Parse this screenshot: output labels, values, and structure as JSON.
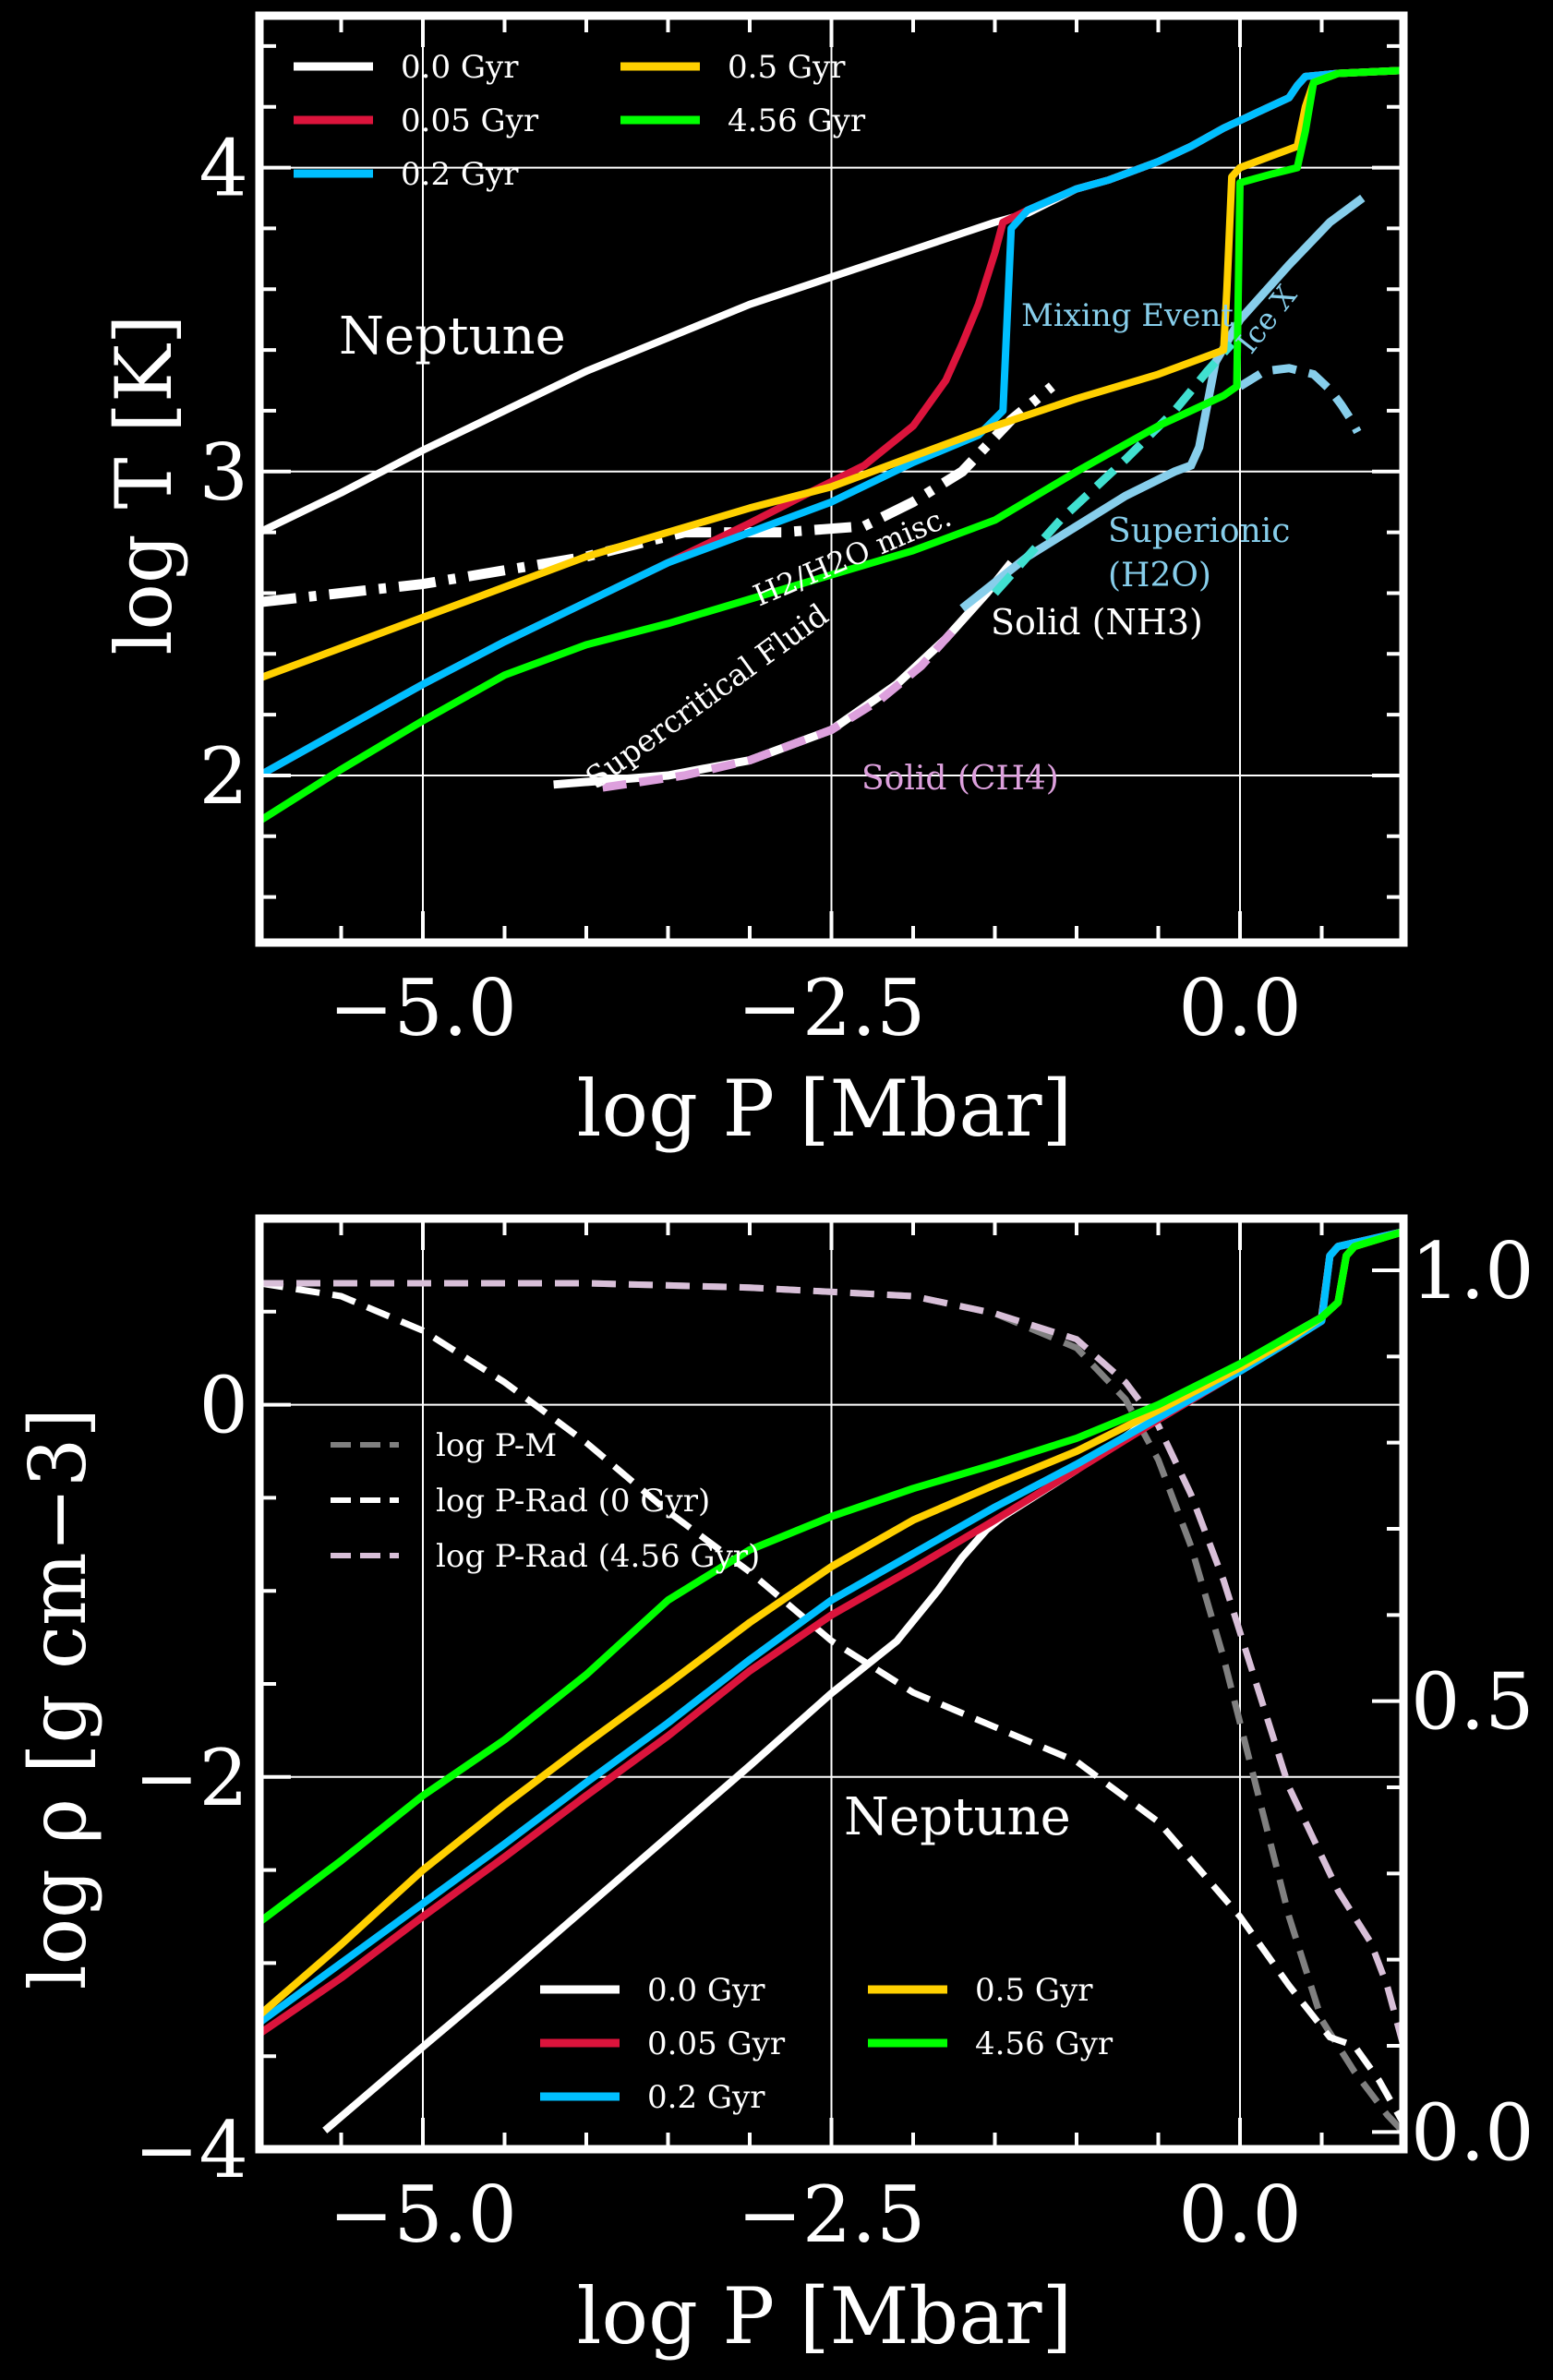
{
  "chart_data": [
    {
      "type": "line",
      "title": "",
      "xlabel": "log P [Mbar]",
      "ylabel": "log T [K]",
      "xlim": [
        -6.0,
        1.0
      ],
      "ylim": [
        1.45,
        4.5
      ],
      "xticks": [
        -5.0,
        -2.5,
        0.0
      ],
      "xtick_labels": [
        "−5.0",
        "−2.5",
        "0.0"
      ],
      "yticks": [
        2,
        3,
        4
      ],
      "ytick_labels": [
        "2",
        "3",
        "4"
      ],
      "grid": true,
      "legend_position": "top-left",
      "series": [
        {
          "name": "0.0 Gyr",
          "color": "#ffffff",
          "x": [
            -6.0,
            -5.5,
            -5.0,
            -4.5,
            -4.0,
            -3.5,
            -3.0,
            -2.5,
            -2.0,
            -1.5,
            -1.3,
            -1.0,
            -0.8,
            -0.5,
            -0.3,
            -0.1,
            0.1,
            0.3,
            0.35,
            0.4,
            0.6,
            1.0
          ],
          "y": [
            2.8,
            2.93,
            3.07,
            3.2,
            3.33,
            3.44,
            3.55,
            3.64,
            3.73,
            3.82,
            3.85,
            3.93,
            3.96,
            4.02,
            4.07,
            4.13,
            4.18,
            4.23,
            4.27,
            4.3,
            4.31,
            4.32
          ]
        },
        {
          "name": "0.05 Gyr",
          "color": "#dc143c",
          "x": [
            -6.0,
            -5.5,
            -5.0,
            -4.5,
            -4.0,
            -3.5,
            -3.0,
            -2.6,
            -2.3,
            -2.0,
            -1.8,
            -1.7,
            -1.6,
            -1.5,
            -1.45,
            -1.3,
            -1.0,
            -0.8,
            -0.5,
            -0.3,
            -0.1,
            0.1,
            0.3,
            0.35,
            0.4,
            0.6,
            1.0
          ],
          "y": [
            2.0,
            2.15,
            2.3,
            2.44,
            2.57,
            2.7,
            2.83,
            2.94,
            3.02,
            3.15,
            3.3,
            3.42,
            3.55,
            3.72,
            3.82,
            3.86,
            3.93,
            3.96,
            4.02,
            4.07,
            4.13,
            4.18,
            4.23,
            4.27,
            4.3,
            4.31,
            4.32
          ]
        },
        {
          "name": "0.2 Gyr",
          "color": "#00bfff",
          "x": [
            -6.0,
            -5.5,
            -5.0,
            -4.5,
            -4.0,
            -3.5,
            -3.0,
            -2.5,
            -2.0,
            -1.6,
            -1.45,
            -1.4,
            -1.3,
            -1.0,
            -0.8,
            -0.5,
            -0.3,
            -0.1,
            0.1,
            0.3,
            0.35,
            0.4,
            0.6,
            1.0
          ],
          "y": [
            2.0,
            2.15,
            2.3,
            2.44,
            2.57,
            2.7,
            2.8,
            2.9,
            3.03,
            3.12,
            3.2,
            3.8,
            3.86,
            3.93,
            3.96,
            4.02,
            4.07,
            4.13,
            4.18,
            4.23,
            4.27,
            4.3,
            4.31,
            4.32
          ]
        },
        {
          "name": "0.5 Gyr",
          "color": "#ffd000",
          "x": [
            -6.0,
            -5.5,
            -5.0,
            -4.5,
            -4.0,
            -3.5,
            -3.0,
            -2.5,
            -2.0,
            -1.5,
            -1.0,
            -0.5,
            -0.2,
            -0.1,
            -0.08,
            -0.05,
            0.0,
            0.2,
            0.35,
            0.4,
            0.45,
            0.6,
            1.0
          ],
          "y": [
            2.32,
            2.42,
            2.52,
            2.62,
            2.72,
            2.8,
            2.88,
            2.95,
            3.05,
            3.15,
            3.24,
            3.32,
            3.38,
            3.4,
            3.6,
            3.97,
            4.0,
            4.04,
            4.07,
            4.2,
            4.28,
            4.31,
            4.32
          ]
        },
        {
          "name": "4.56 Gyr",
          "color": "#00ff00",
          "x": [
            -6.0,
            -5.5,
            -5.0,
            -4.5,
            -4.0,
            -3.5,
            -3.0,
            -2.5,
            -2.0,
            -1.5,
            -1.0,
            -0.5,
            -0.1,
            -0.02,
            0.0,
            0.2,
            0.35,
            0.4,
            0.45,
            0.6,
            1.0
          ],
          "y": [
            1.85,
            2.02,
            2.18,
            2.33,
            2.43,
            2.5,
            2.58,
            2.66,
            2.74,
            2.84,
            3.0,
            3.15,
            3.25,
            3.28,
            3.95,
            3.98,
            4.0,
            4.12,
            4.28,
            4.31,
            4.32
          ]
        }
      ],
      "reference_curves": [
        {
          "label": "H2/H2O misc.",
          "style": "dash-dot",
          "color": "#ffffff",
          "x": [
            -6.0,
            -5.0,
            -4.0,
            -3.4,
            -2.8,
            -2.3,
            -2.0,
            -1.7,
            -1.4,
            -1.15
          ],
          "y": [
            2.57,
            2.63,
            2.72,
            2.8,
            2.8,
            2.82,
            2.9,
            3.0,
            3.17,
            3.28
          ]
        },
        {
          "label": "Supercritical Fluid / Solid (NH3) boundary",
          "style": "solid",
          "color": "#ffffff",
          "x": [
            -4.2,
            -3.5,
            -3.0,
            -2.5,
            -2.1,
            -1.8,
            -1.55,
            -1.4
          ],
          "y": [
            1.97,
            2.0,
            2.05,
            2.15,
            2.3,
            2.45,
            2.6,
            2.7
          ]
        },
        {
          "label": "Solid (CH4)",
          "style": "dashed",
          "color": "#dda0dd",
          "x": [
            -3.9,
            -3.4,
            -3.0,
            -2.5,
            -2.2,
            -1.95,
            -1.75
          ],
          "y": [
            1.96,
            2.0,
            2.05,
            2.15,
            2.25,
            2.36,
            2.48
          ]
        },
        {
          "label": "Superionic (H2O)",
          "style": "solid",
          "color": "#87ceeb",
          "x": [
            -1.7,
            -1.3,
            -1.0,
            -0.7,
            -0.4,
            -0.3,
            -0.25,
            -0.2,
            -0.15,
            0.0,
            0.3,
            0.55,
            0.75
          ],
          "y": [
            2.55,
            2.72,
            2.82,
            2.92,
            3.0,
            3.02,
            3.08,
            3.22,
            3.36,
            3.5,
            3.68,
            3.82,
            3.9
          ]
        },
        {
          "label": "Ice X",
          "style": "dashed",
          "color": "#87ceeb",
          "x": [
            0.0,
            0.15,
            0.3,
            0.45,
            0.55,
            0.62,
            0.68,
            0.72
          ],
          "y": [
            3.28,
            3.33,
            3.34,
            3.32,
            3.27,
            3.22,
            3.17,
            3.13
          ]
        },
        {
          "label": "Solid (NH3) boundary",
          "style": "dashed",
          "color": "#40e0d0",
          "x": [
            -1.5,
            -1.1,
            -0.7,
            -0.4,
            -0.2,
            -0.05
          ],
          "y": [
            2.6,
            2.84,
            3.04,
            3.2,
            3.33,
            3.42
          ]
        }
      ],
      "annotations": [
        "Neptune",
        "Mixing Event",
        "Ice X",
        "H2/H2O misc.",
        "Superionic",
        "(H2O)",
        "Solid (NH3)",
        "Supercritical Fluid",
        "Solid (CH4)"
      ]
    },
    {
      "type": "line",
      "title": "",
      "xlabel": "log P [Mbar]",
      "ylabel": "log ρ [g cm−3]",
      "xlim": [
        -6.0,
        1.0
      ],
      "ylim": [
        -4.0,
        1.0
      ],
      "y2lim": [
        -0.02,
        1.06
      ],
      "xticks": [
        -5.0,
        -2.5,
        0.0
      ],
      "xtick_labels": [
        "−5.0",
        "−2.5",
        "0.0"
      ],
      "yticks": [
        -4,
        -2,
        0
      ],
      "ytick_labels": [
        "−4",
        "−2",
        "0"
      ],
      "y2ticks": [
        0.0,
        0.5,
        1.0
      ],
      "y2tick_labels": [
        "0.0",
        "0.5",
        "1.0"
      ],
      "grid": true,
      "legend_position": "bottom-center",
      "series": [
        {
          "name": "0.0 Gyr",
          "color": "#ffffff",
          "x": [
            -5.6,
            -5.0,
            -4.5,
            -4.0,
            -3.5,
            -3.0,
            -2.5,
            -2.1,
            -1.85,
            -1.7,
            -1.55,
            -1.45,
            -1.0,
            -0.5,
            0.0,
            0.3,
            0.5,
            0.55,
            0.6,
            0.7,
            1.0
          ],
          "y": [
            -3.9,
            -3.45,
            -3.08,
            -2.7,
            -2.32,
            -1.94,
            -1.55,
            -1.27,
            -1.0,
            -0.82,
            -0.67,
            -0.6,
            -0.35,
            -0.05,
            0.2,
            0.37,
            0.47,
            0.8,
            0.85,
            0.87,
            0.93
          ]
        },
        {
          "name": "0.05 Gyr",
          "color": "#dc143c",
          "x": [
            -6.0,
            -5.5,
            -5.0,
            -4.5,
            -4.0,
            -3.5,
            -3.0,
            -2.5,
            -2.0,
            -1.5,
            -1.0,
            -0.5,
            0.0,
            0.3,
            0.5,
            0.55,
            0.6,
            0.7,
            1.0
          ],
          "y": [
            -3.38,
            -3.08,
            -2.75,
            -2.43,
            -2.1,
            -1.78,
            -1.43,
            -1.13,
            -0.88,
            -0.62,
            -0.35,
            -0.08,
            0.18,
            0.34,
            0.45,
            0.8,
            0.85,
            0.87,
            0.93
          ]
        },
        {
          "name": "0.2 Gyr",
          "color": "#00bfff",
          "x": [
            -6.0,
            -5.5,
            -5.0,
            -4.5,
            -4.0,
            -3.5,
            -3.0,
            -2.5,
            -2.0,
            -1.5,
            -1.0,
            -0.5,
            0.0,
            0.3,
            0.5,
            0.55,
            0.6,
            0.7,
            1.0
          ],
          "y": [
            -3.32,
            -3.0,
            -2.68,
            -2.36,
            -2.03,
            -1.71,
            -1.37,
            -1.05,
            -0.8,
            -0.55,
            -0.32,
            -0.07,
            0.18,
            0.34,
            0.45,
            0.8,
            0.85,
            0.87,
            0.93
          ]
        },
        {
          "name": "0.5 Gyr",
          "color": "#ffd000",
          "x": [
            -6.0,
            -5.5,
            -5.0,
            -4.5,
            -4.0,
            -3.5,
            -3.0,
            -2.5,
            -2.0,
            -1.5,
            -1.0,
            -0.5,
            0.0,
            0.3,
            0.5,
            0.6,
            0.65,
            0.7,
            1.0
          ],
          "y": [
            -3.28,
            -2.9,
            -2.5,
            -2.15,
            -1.82,
            -1.5,
            -1.17,
            -0.87,
            -0.62,
            -0.43,
            -0.25,
            -0.03,
            0.2,
            0.35,
            0.47,
            0.55,
            0.8,
            0.85,
            0.93
          ]
        },
        {
          "name": "4.56 Gyr",
          "color": "#00ff00",
          "x": [
            -6.0,
            -5.5,
            -5.0,
            -4.5,
            -4.0,
            -3.5,
            -3.0,
            -2.5,
            -2.0,
            -1.5,
            -1.0,
            -0.5,
            0.0,
            0.3,
            0.5,
            0.6,
            0.65,
            0.7,
            1.0
          ],
          "y": [
            -2.78,
            -2.45,
            -2.1,
            -1.8,
            -1.45,
            -1.05,
            -0.78,
            -0.6,
            -0.45,
            -0.32,
            -0.18,
            0.0,
            0.22,
            0.37,
            0.47,
            0.55,
            0.8,
            0.85,
            0.93
          ]
        }
      ],
      "secondary_series": [
        {
          "name": "log P-M",
          "style": "dashed",
          "color": "#808080",
          "x": [
            -6.0,
            -4.0,
            -3.0,
            -2.0,
            -1.5,
            -1.0,
            -0.7,
            -0.5,
            -0.3,
            -0.1,
            0.1,
            0.3,
            0.5,
            0.7,
            0.9,
            1.0
          ],
          "y": [
            0.985,
            0.985,
            0.98,
            0.97,
            0.95,
            0.91,
            0.85,
            0.78,
            0.68,
            0.55,
            0.4,
            0.25,
            0.13,
            0.07,
            0.02,
            0.0
          ]
        },
        {
          "name": "log P-Rad (0 Gyr)",
          "style": "dashed",
          "color": "#ffffff",
          "x": [
            -6.0,
            -5.5,
            -5.0,
            -4.5,
            -4.0,
            -3.5,
            -3.0,
            -2.5,
            -2.0,
            -1.5,
            -1.0,
            -0.5,
            0.0,
            0.3,
            0.55,
            0.7,
            0.85,
            1.0
          ],
          "y": [
            0.985,
            0.97,
            0.93,
            0.87,
            0.8,
            0.72,
            0.65,
            0.57,
            0.51,
            0.47,
            0.43,
            0.36,
            0.25,
            0.17,
            0.11,
            0.1,
            0.06,
            0.01
          ]
        },
        {
          "name": "log P-Rad (4.56 Gyr)",
          "style": "dashed",
          "color": "#d8bfd8",
          "x": [
            -6.0,
            -4.0,
            -3.0,
            -2.0,
            -1.5,
            -1.0,
            -0.7,
            -0.5,
            -0.3,
            -0.1,
            0.1,
            0.3,
            0.5,
            0.6,
            0.8,
            0.9,
            1.0
          ],
          "y": [
            0.985,
            0.985,
            0.98,
            0.97,
            0.95,
            0.92,
            0.87,
            0.82,
            0.74,
            0.64,
            0.52,
            0.4,
            0.32,
            0.28,
            0.22,
            0.17,
            0.1
          ]
        }
      ],
      "annotations": [
        "Neptune"
      ]
    }
  ]
}
